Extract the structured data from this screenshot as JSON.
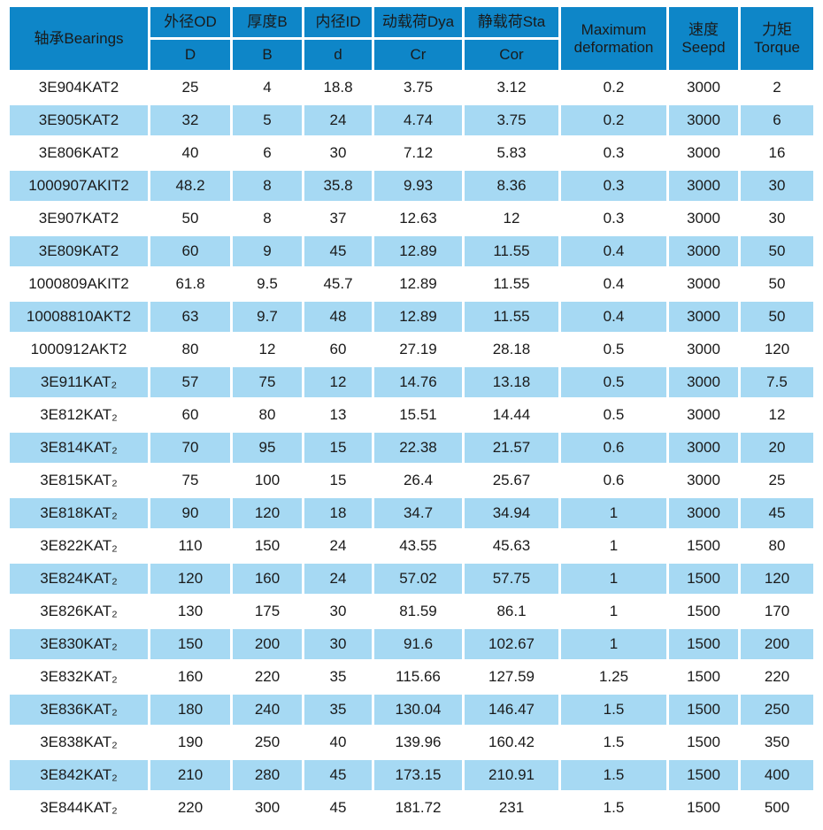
{
  "colors": {
    "header_bg": "#0E86C8",
    "row_alt_bg": "#A6D9F3",
    "row_bg": "#FFFFFF",
    "text": "#1A1A1A"
  },
  "table": {
    "header": {
      "bearings": "轴承Bearings",
      "outer_diameter": "外径OD",
      "outer_diameter_sub": "D",
      "thickness": "厚度B",
      "thickness_sub": "B",
      "inner_diameter": "内径ID",
      "inner_diameter_sub": "d",
      "dynamic_load": "动载荷Dya",
      "dynamic_load_sub": "Cr",
      "static_load": "静载荷Sta",
      "static_load_sub": "Cor",
      "max_deformation": "Maximum deformation",
      "speed": "速度Seepd",
      "torque": "力矩Torque"
    },
    "rows": [
      [
        "3E904KAT2",
        "25",
        "4",
        "18.8",
        "3.75",
        "3.12",
        "0.2",
        "3000",
        "2"
      ],
      [
        "3E905KAT2",
        "32",
        "5",
        "24",
        "4.74",
        "3.75",
        "0.2",
        "3000",
        "6"
      ],
      [
        "3E806KAT2",
        "40",
        "6",
        "30",
        "7.12",
        "5.83",
        "0.3",
        "3000",
        "16"
      ],
      [
        "1000907AKIT2",
        "48.2",
        "8",
        "35.8",
        "9.93",
        "8.36",
        "0.3",
        "3000",
        "30"
      ],
      [
        "3E907KAT2",
        "50",
        "8",
        "37",
        "12.63",
        "12",
        "0.3",
        "3000",
        "30"
      ],
      [
        "3E809KAT2",
        "60",
        "9",
        "45",
        "12.89",
        "11.55",
        "0.4",
        "3000",
        "50"
      ],
      [
        "1000809AKIT2",
        "61.8",
        "9.5",
        "45.7",
        "12.89",
        "11.55",
        "0.4",
        "3000",
        "50"
      ],
      [
        "10008810AKT2",
        "63",
        "9.7",
        "48",
        "12.89",
        "11.55",
        "0.4",
        "3000",
        "50"
      ],
      [
        "1000912AKT2",
        "80",
        "12",
        "60",
        "27.19",
        "28.18",
        "0.5",
        "3000",
        "120"
      ],
      [
        "3E911KAT₂",
        "57",
        "75",
        "12",
        "14.76",
        "13.18",
        "0.5",
        "3000",
        "7.5"
      ],
      [
        "3E812KAT₂",
        "60",
        "80",
        "13",
        "15.51",
        "14.44",
        "0.5",
        "3000",
        "12"
      ],
      [
        "3E814KAT₂",
        "70",
        "95",
        "15",
        "22.38",
        "21.57",
        "0.6",
        "3000",
        "20"
      ],
      [
        "3E815KAT₂",
        "75",
        "100",
        "15",
        "26.4",
        "25.67",
        "0.6",
        "3000",
        "25"
      ],
      [
        "3E818KAT₂",
        "90",
        "120",
        "18",
        "34.7",
        "34.94",
        "1",
        "3000",
        "45"
      ],
      [
        "3E822KAT₂",
        "110",
        "150",
        "24",
        "43.55",
        "45.63",
        "1",
        "1500",
        "80"
      ],
      [
        "3E824KAT₂",
        "120",
        "160",
        "24",
        "57.02",
        "57.75",
        "1",
        "1500",
        "120"
      ],
      [
        "3E826KAT₂",
        "130",
        "175",
        "30",
        "81.59",
        "86.1",
        "1",
        "1500",
        "170"
      ],
      [
        "3E830KAT₂",
        "150",
        "200",
        "30",
        "91.6",
        "102.67",
        "1",
        "1500",
        "200"
      ],
      [
        "3E832KAT₂",
        "160",
        "220",
        "35",
        "115.66",
        "127.59",
        "1.25",
        "1500",
        "220"
      ],
      [
        "3E836KAT₂",
        "180",
        "240",
        "35",
        "130.04",
        "146.47",
        "1.5",
        "1500",
        "250"
      ],
      [
        "3E838KAT₂",
        "190",
        "250",
        "40",
        "139.96",
        "160.42",
        "1.5",
        "1500",
        "350"
      ],
      [
        "3E842KAT₂",
        "210",
        "280",
        "45",
        "173.15",
        "210.91",
        "1.5",
        "1500",
        "400"
      ],
      [
        "3E844KAT₂",
        "220",
        "300",
        "45",
        "181.72",
        "231",
        "1.5",
        "1500",
        "500"
      ]
    ]
  }
}
